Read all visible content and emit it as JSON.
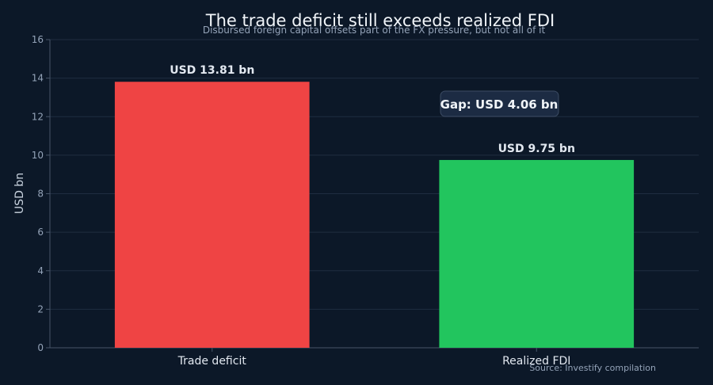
{
  "chart_data": {
    "type": "bar",
    "title": "The trade deficit still exceeds realized FDI",
    "subtitle": "Disbursed foreign capital offsets part of the FX pressure, but not all of it",
    "xlabel": "",
    "ylabel": "USD bn",
    "categories": [
      "Trade deficit",
      "Realized FDI"
    ],
    "values": [
      13.81,
      9.75
    ],
    "data_labels": [
      "USD 13.81 bn",
      "USD 9.75 bn"
    ],
    "colors": [
      "#ef4444",
      "#22c55e"
    ],
    "ylim": [
      0,
      16
    ],
    "yticks": [
      0,
      2,
      4,
      6,
      8,
      10,
      12,
      14,
      16
    ],
    "grid": true,
    "annotation": "Gap: USD 4.06 bn",
    "source": "Source: Investify compilation"
  }
}
